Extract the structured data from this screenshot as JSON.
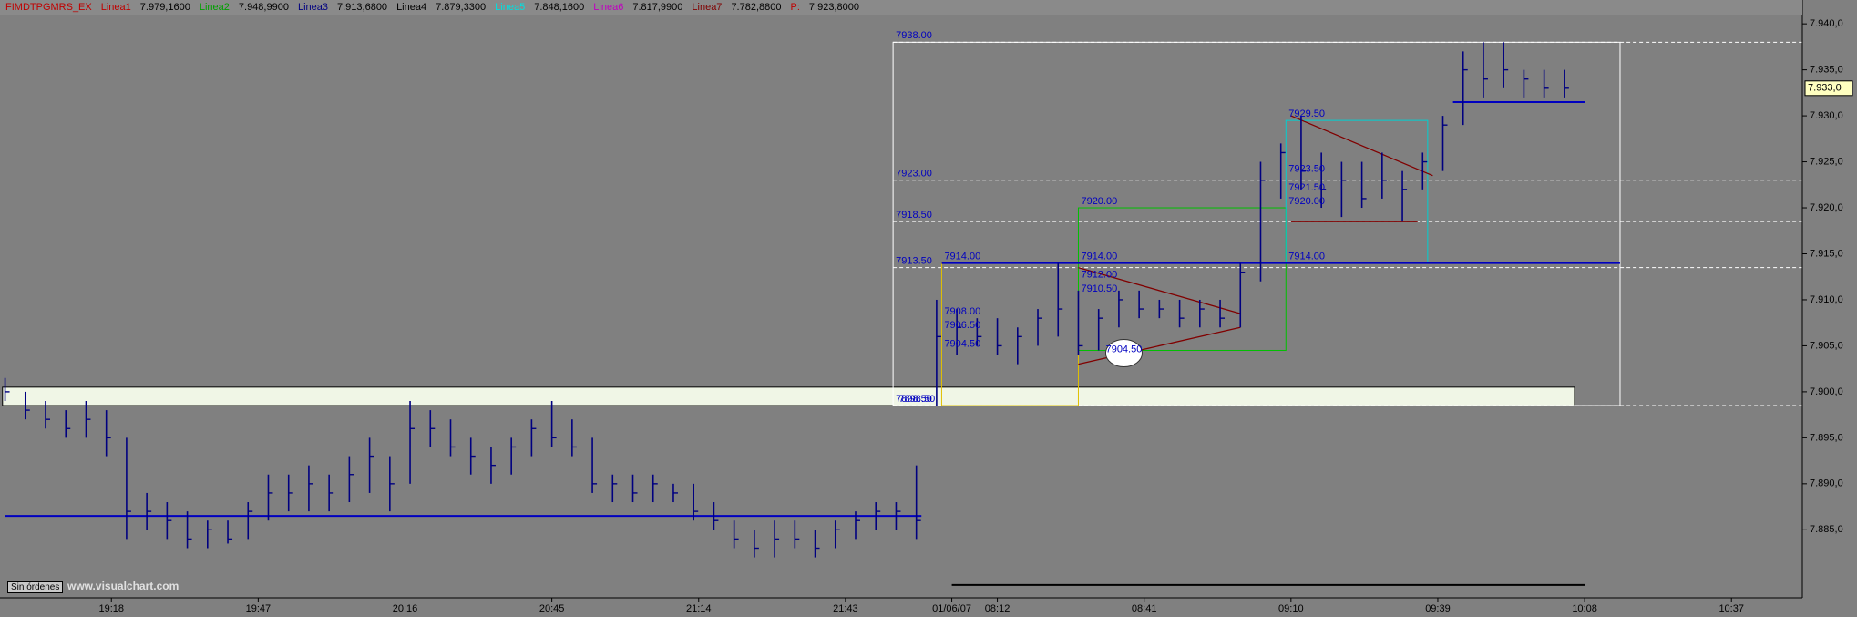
{
  "header": {
    "symbol": {
      "text": "FIMDTPGMRS_EX",
      "color": "#c00000"
    },
    "indicators": [
      {
        "name": "Linea1",
        "value": "7.979,1600",
        "color": "#c00000"
      },
      {
        "name": "Linea2",
        "value": "7.948,9900",
        "color": "#00a000"
      },
      {
        "name": "Linea3",
        "value": "7.913,6800",
        "color": "#000080"
      },
      {
        "name": "Linea4",
        "value": "7.879,3300",
        "color": "#000000"
      },
      {
        "name": "Linea5",
        "value": "7.848,1600",
        "color": "#00e0e0"
      },
      {
        "name": "Linea6",
        "value": "7.817,9900",
        "color": "#c000c0"
      },
      {
        "name": "Linea7",
        "value": "7.782,8800",
        "color": "#800000"
      },
      {
        "name": "P:",
        "value": "7.923,8000",
        "color": "#c00000"
      }
    ]
  },
  "chart_data": {
    "type": "hlc",
    "color": "#000080",
    "x": [
      1,
      5,
      9,
      13,
      17,
      21,
      25,
      29,
      33,
      37,
      41,
      45,
      49,
      53,
      57,
      61,
      65,
      69,
      73,
      77,
      81,
      85,
      89,
      93,
      97,
      101,
      105,
      109,
      113,
      117,
      121,
      125,
      129,
      133,
      137,
      141,
      145,
      149,
      153,
      157,
      161,
      165,
      169,
      173,
      177,
      181,
      185,
      189,
      193,
      197,
      201,
      205,
      209,
      213,
      217,
      221,
      225,
      229,
      233,
      237,
      241,
      245,
      249,
      253,
      257,
      261,
      265,
      269,
      273,
      277,
      281,
      285,
      289,
      293,
      297,
      301,
      305,
      309
    ],
    "high": [
      7.9015,
      7.9,
      7.899,
      7.898,
      7.899,
      7.898,
      7.895,
      7.889,
      7.888,
      7.887,
      7.886,
      7.886,
      7.888,
      7.891,
      7.891,
      7.892,
      7.891,
      7.893,
      7.895,
      7.893,
      7.899,
      7.898,
      7.897,
      7.895,
      7.894,
      7.895,
      7.897,
      7.899,
      7.897,
      7.895,
      7.891,
      7.891,
      7.891,
      7.89,
      7.89,
      7.888,
      7.886,
      7.885,
      7.886,
      7.886,
      7.885,
      7.886,
      7.887,
      7.888,
      7.888,
      7.892,
      7.91,
      7.909,
      7.908,
      7.908,
      7.907,
      7.909,
      7.914,
      7.911,
      7.909,
      7.911,
      7.911,
      7.91,
      7.91,
      7.91,
      7.91,
      7.914,
      7.925,
      7.927,
      7.93,
      7.926,
      7.925,
      7.925,
      7.926,
      7.924,
      7.926,
      7.93,
      7.937,
      7.938,
      7.938,
      7.935,
      7.935,
      7.935
    ],
    "low": [
      7.899,
      7.897,
      7.896,
      7.895,
      7.895,
      7.893,
      7.884,
      7.885,
      7.884,
      7.883,
      7.883,
      7.8835,
      7.884,
      7.886,
      7.887,
      7.887,
      7.887,
      7.888,
      7.889,
      7.887,
      7.89,
      7.894,
      7.893,
      7.891,
      7.89,
      7.891,
      7.893,
      7.894,
      7.893,
      7.889,
      7.888,
      7.888,
      7.888,
      7.888,
      7.886,
      7.885,
      7.883,
      7.882,
      7.882,
      7.883,
      7.882,
      7.883,
      7.884,
      7.885,
      7.885,
      7.884,
      7.8985,
      7.904,
      7.905,
      7.904,
      7.903,
      7.905,
      7.906,
      7.904,
      7.9045,
      7.907,
      7.908,
      7.908,
      7.907,
      7.907,
      7.907,
      7.907,
      7.912,
      7.921,
      7.922,
      7.92,
      7.919,
      7.92,
      7.921,
      7.9185,
      7.922,
      7.924,
      7.929,
      7.932,
      7.933,
      7.932,
      7.932,
      7.932
    ],
    "close": [
      7.9,
      7.898,
      7.897,
      7.896,
      7.897,
      7.895,
      7.887,
      7.887,
      7.886,
      7.884,
      7.885,
      7.884,
      7.887,
      7.889,
      7.889,
      7.89,
      7.889,
      7.891,
      7.893,
      7.89,
      7.896,
      7.896,
      7.894,
      7.893,
      7.892,
      7.894,
      7.896,
      7.895,
      7.894,
      7.89,
      7.89,
      7.889,
      7.89,
      7.889,
      7.887,
      7.886,
      7.884,
      7.883,
      7.884,
      7.884,
      7.883,
      7.885,
      7.886,
      7.887,
      7.887,
      7.886,
      7.906,
      7.907,
      7.906,
      7.905,
      7.906,
      7.908,
      7.909,
      7.905,
      7.908,
      7.91,
      7.909,
      7.909,
      7.908,
      7.909,
      7.908,
      7.913,
      7.923,
      7.926,
      7.924,
      7.922,
      7.923,
      7.921,
      7.923,
      7.922,
      7.925,
      7.929,
      7.935,
      7.934,
      7.935,
      7.934,
      7.933,
      7.933
    ],
    "xlim": [
      0,
      356
    ],
    "ylim": [
      7.8776,
      7.9416
    ],
    "xticks": [
      {
        "value": 22,
        "label": "19:18"
      },
      {
        "value": 51,
        "label": "19:47"
      },
      {
        "value": 80,
        "label": "20:16"
      },
      {
        "value": 109,
        "label": "20:45"
      },
      {
        "value": 138,
        "label": "21:14"
      },
      {
        "value": 167,
        "label": "21:43"
      },
      {
        "value": 188,
        "label": "01/06/07"
      },
      {
        "value": 197,
        "label": "08:12"
      },
      {
        "value": 226,
        "label": "08:41"
      },
      {
        "value": 255,
        "label": "09:10"
      },
      {
        "value": 284,
        "label": "09:39"
      },
      {
        "value": 313,
        "label": "10:08"
      },
      {
        "value": 342,
        "label": "10:37"
      }
    ],
    "yticks": [
      {
        "value": 7.885,
        "label": "7.885,0"
      },
      {
        "value": 7.89,
        "label": "7.890,0"
      },
      {
        "value": 7.895,
        "label": "7.895,0"
      },
      {
        "value": 7.9,
        "label": "7.900,0"
      },
      {
        "value": 7.905,
        "label": "7.905,0"
      },
      {
        "value": 7.91,
        "label": "7.910,0"
      },
      {
        "value": 7.915,
        "label": "7.915,0"
      },
      {
        "value": 7.92,
        "label": "7.920,0"
      },
      {
        "value": 7.925,
        "label": "7.925,0"
      },
      {
        "value": 7.93,
        "label": "7.930,0"
      },
      {
        "value": 7.935,
        "label": "7.935,0"
      },
      {
        "value": 7.94,
        "label": "7.940,0"
      }
    ],
    "last": {
      "value": 7.933,
      "label": "7.933,0"
    },
    "band": {
      "x": [
        0.5,
        311
      ],
      "y": [
        7.8985,
        7.9005
      ]
    },
    "box": {
      "x": [
        176.4,
        320
      ],
      "y": [
        7.8985,
        7.938
      ]
    },
    "levels": [
      {
        "value": 7.938,
        "label": "7938.00"
      },
      {
        "value": 7.923,
        "label": "7923.00"
      },
      {
        "value": 7.9185,
        "label": "7918.50"
      },
      {
        "value": 7.9135,
        "label": "7913.50"
      },
      {
        "value": 7.8985,
        "label": "7898.50"
      }
    ],
    "hlines": [
      {
        "y": 7.8865,
        "x": [
          1,
          182
        ],
        "color": "#0000c0"
      },
      {
        "y": 7.914,
        "x": [
          186,
          320
        ],
        "color": "#0000c0"
      },
      {
        "y": 7.9315,
        "x": [
          287,
          313
        ],
        "color": "#0000c0"
      },
      {
        "y": 7.879,
        "x": [
          188,
          313
        ],
        "color": "#000000"
      }
    ],
    "rects": [
      {
        "x": [
          186,
          213
        ],
        "y": [
          7.8985,
          7.914
        ],
        "color": "#e0c000"
      },
      {
        "x": [
          213,
          254
        ],
        "y": [
          7.9045,
          7.92
        ],
        "color": "#00c000"
      },
      {
        "x": [
          254,
          282
        ],
        "y": [
          7.914,
          7.9295
        ],
        "color": "#00d0d0"
      }
    ],
    "trendlines": [
      {
        "x": [
          213,
          245
        ],
        "y": [
          7.9135,
          7.9085
        ]
      },
      {
        "x": [
          213,
          245
        ],
        "y": [
          7.903,
          7.907
        ]
      },
      {
        "x": [
          255,
          283
        ],
        "y": [
          7.93,
          7.9235
        ]
      },
      {
        "x": [
          255,
          280
        ],
        "y": [
          7.9185,
          7.9185
        ]
      }
    ],
    "labels": [
      {
        "x": 177,
        "y": 7.8985,
        "label": "7898.50"
      },
      {
        "x": 186,
        "y": 7.914,
        "label": "7914.00"
      },
      {
        "x": 213,
        "y": 7.914,
        "label": "7914.00"
      },
      {
        "x": 254,
        "y": 7.914,
        "label": "7914.00"
      },
      {
        "x": 213,
        "y": 7.92,
        "label": "7920.00"
      },
      {
        "x": 254,
        "y": 7.92,
        "label": "7920.00"
      },
      {
        "x": 254,
        "y": 7.9295,
        "label": "7929.50"
      },
      {
        "x": 254,
        "y": 7.9235,
        "label": "7923.50"
      },
      {
        "x": 254,
        "y": 7.9215,
        "label": "7921.50"
      },
      {
        "x": 213,
        "y": 7.912,
        "label": "7912.00"
      },
      {
        "x": 213,
        "y": 7.9105,
        "label": "7910.50"
      },
      {
        "x": 186,
        "y": 7.908,
        "label": "7908.00"
      },
      {
        "x": 186,
        "y": 7.9065,
        "label": "7906.50"
      },
      {
        "x": 186,
        "y": 7.9045,
        "label": "7904.50"
      }
    ],
    "highlight": {
      "x": 222,
      "y": 7.9042,
      "label": "7904.50"
    }
  },
  "status": {
    "button": "Sin órdenes",
    "watermark": "www.visualchart.com"
  }
}
